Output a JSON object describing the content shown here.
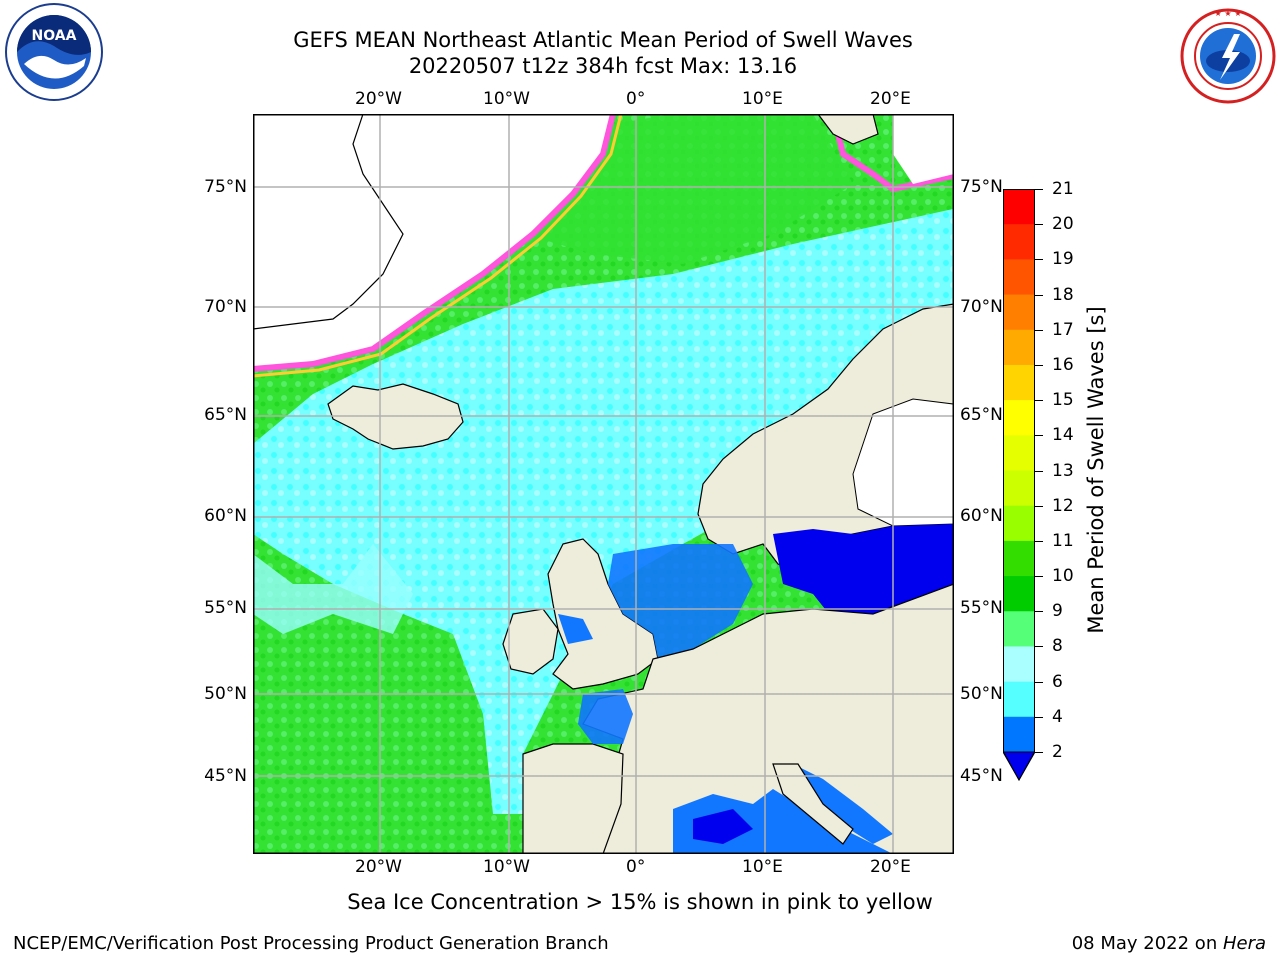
{
  "header": {
    "title_line1": "GEFS MEAN Northeast Atlantic Mean Period of Swell Waves",
    "title_line2": "20220507 t12z 384h fcst   Max: 13.16"
  },
  "logos": {
    "left": "NOAA",
    "left_ring": "NATIONAL OCEANIC AND ATMOSPHERIC ADMINISTRATION · U.S. DEPARTMENT OF COMMERCE",
    "right_ring": "NATIONAL WEATHER SERVICE"
  },
  "axes": {
    "lon_top": [
      "20°W",
      "10°W",
      "0°",
      "10°E",
      "20°E"
    ],
    "lon_bottom": [
      "20°W",
      "10°W",
      "0°",
      "10°E",
      "20°E"
    ],
    "lat_left": [
      "75°N",
      "70°N",
      "65°N",
      "60°N",
      "55°N",
      "50°N",
      "45°N"
    ],
    "lat_right": [
      "75°N",
      "70°N",
      "65°N",
      "60°N",
      "55°N",
      "50°N",
      "45°N"
    ]
  },
  "colorbar": {
    "label": "Mean Period of Swell Waves [s]",
    "ticks": [
      "21",
      "20",
      "19",
      "18",
      "17",
      "16",
      "15",
      "14",
      "13",
      "12",
      "11",
      "10",
      "9",
      "8",
      "6",
      "4",
      "2"
    ],
    "colors": [
      "#ff0000",
      "#ff2a00",
      "#ff5500",
      "#ff7f00",
      "#ffaa00",
      "#ffd400",
      "#ffff00",
      "#e6ff00",
      "#ccff00",
      "#99ff00",
      "#33dd00",
      "#00cc00",
      "#55ff77",
      "#aaffff",
      "#55ffff",
      "#00eeff",
      "#0077ff"
    ],
    "under_color": "#0000ee"
  },
  "note": "Sea Ice Concentration > 15% is shown in pink to yellow",
  "footer": {
    "left": "NCEP/EMC/Verification Post Processing Product Generation Branch",
    "date": "08 May 2022 on ",
    "machine": "Hera"
  },
  "map_colors": {
    "land": "#eeecda",
    "swell_dark_green": "#22dd22",
    "swell_green": "#55ee66",
    "swell_light_cyan": "#99ffff",
    "swell_cyan": "#44ffff",
    "swell_blue": "#1177ff",
    "swell_deep_blue": "#0000ee",
    "ice_pink": "#ff55dd",
    "ice_yellow": "#ffcc33"
  }
}
